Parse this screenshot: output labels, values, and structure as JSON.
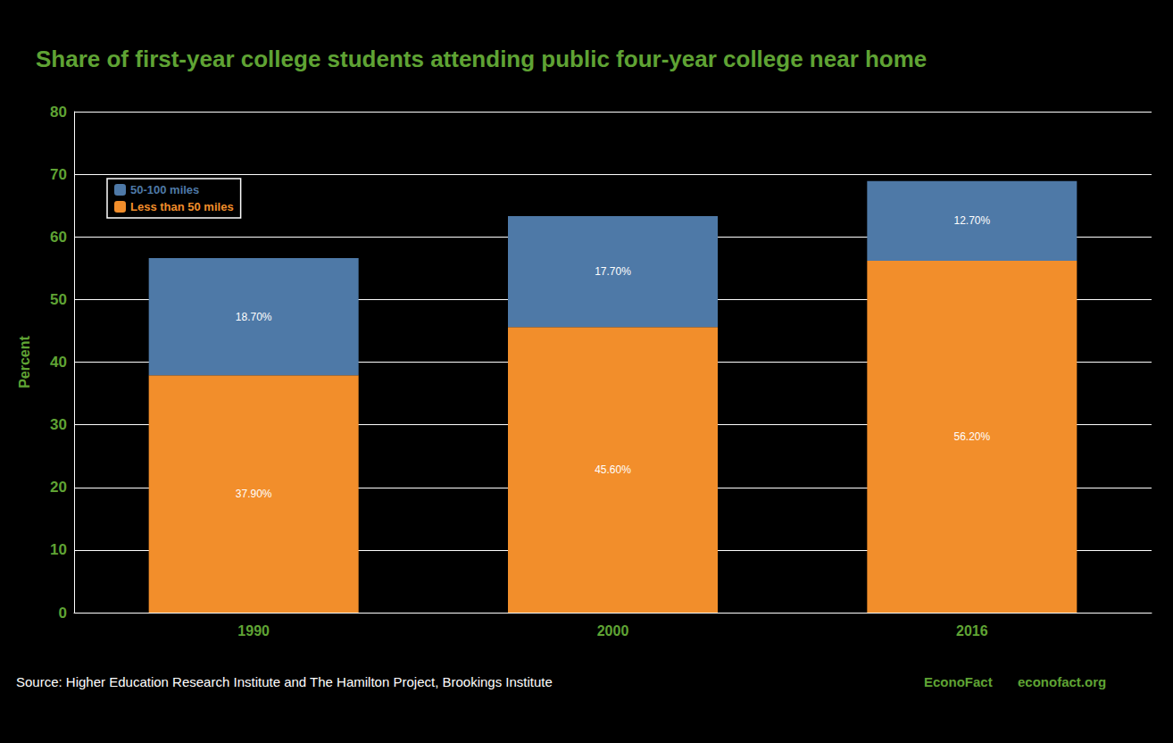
{
  "chart_data": {
    "type": "bar",
    "title": "Share of first-year college students attending public four-year college near home",
    "categories": [
      "1990",
      "2000",
      "2016"
    ],
    "series": [
      {
        "name": "Less than 50 miles",
        "color": "#f28e2b",
        "values": [
          37.9,
          45.6,
          56.2
        ],
        "value_labels": [
          "37.90%",
          "45.60%",
          "56.20%"
        ]
      },
      {
        "name": "50-100 miles",
        "color": "#4e79a7",
        "values": [
          18.7,
          17.7,
          12.7
        ],
        "value_labels": [
          "18.70%",
          "17.70%",
          "12.70%"
        ]
      }
    ],
    "y_label": "Percent",
    "ylim": [
      0,
      80
    ],
    "yticks": [
      0,
      10,
      20,
      30,
      40,
      50,
      60,
      70,
      80
    ],
    "stacked": true,
    "data_labels": true,
    "grid": true,
    "legend": "upper left",
    "annotations": [
      "Source: Higher Education Research Institute and The Hamilton Project, Brookings Institute",
      "EconoFact",
      "econofact.org"
    ]
  }
}
